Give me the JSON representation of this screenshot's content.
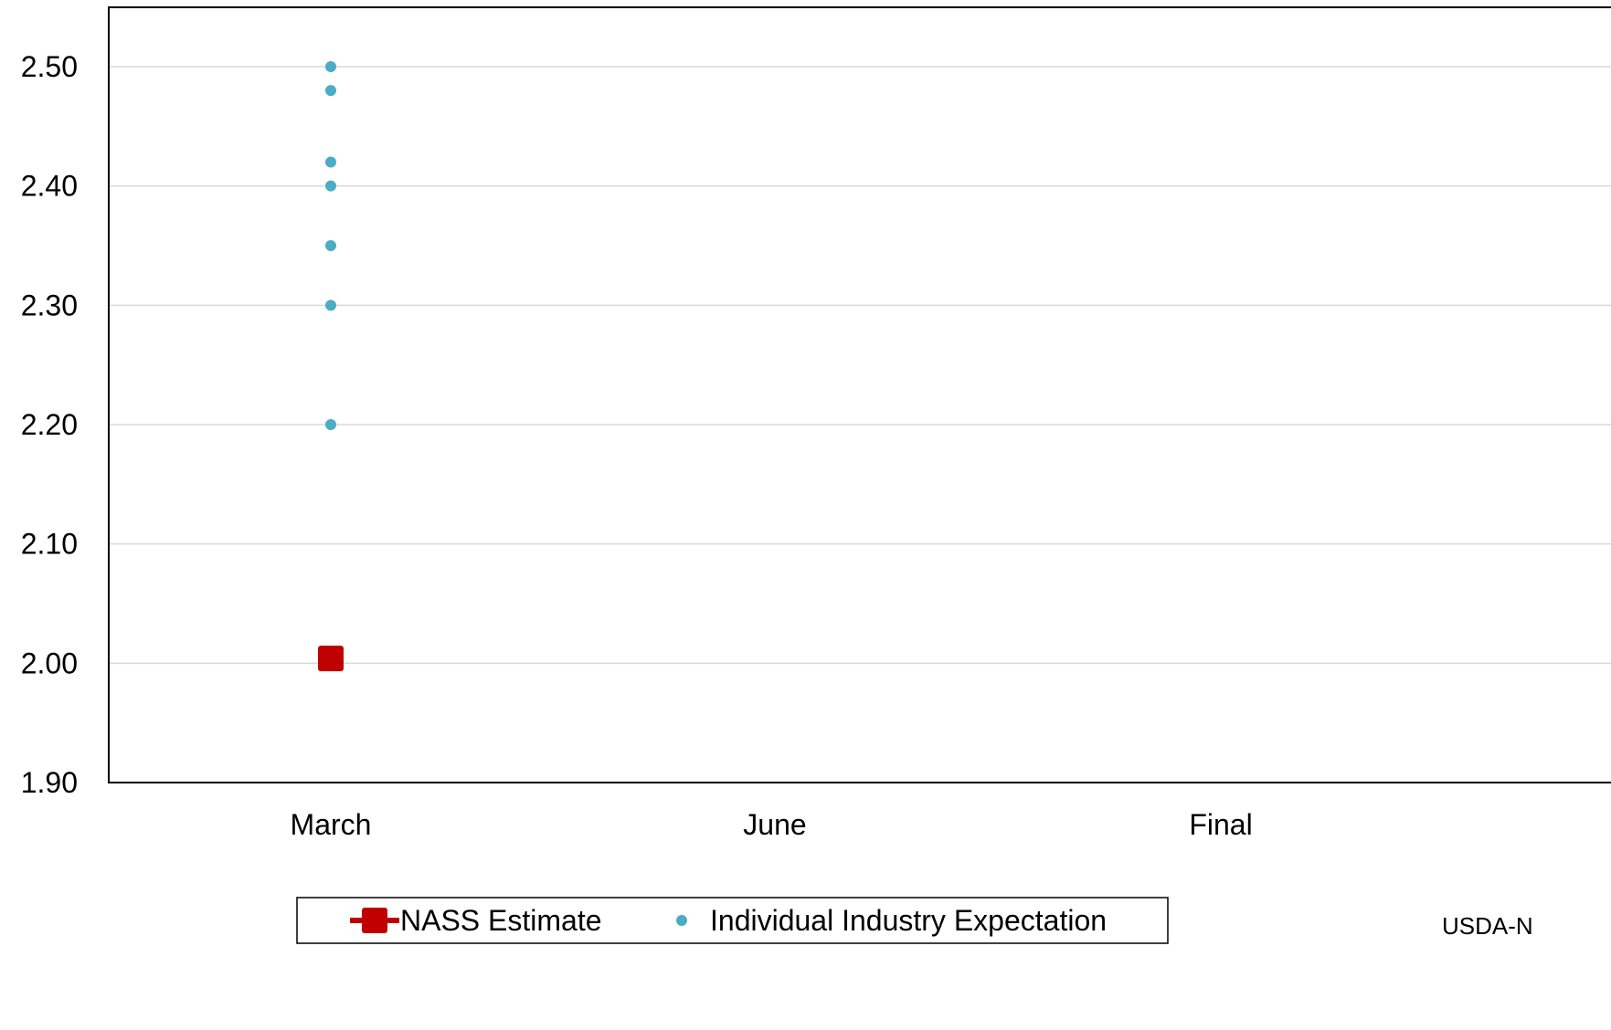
{
  "chart_data": {
    "type": "scatter",
    "categories": [
      "March",
      "June",
      "Final"
    ],
    "ylim": [
      1.9,
      2.55
    ],
    "yticks": [
      "1.90",
      "2.00",
      "2.10",
      "2.20",
      "2.30",
      "2.40",
      "2.50"
    ],
    "grid": true,
    "series": [
      {
        "name": "NASS Estimate",
        "marker": "square",
        "color": "#C00000",
        "points": [
          {
            "category": "March",
            "value": 2.004
          }
        ]
      },
      {
        "name": "Individual Industry Expectation",
        "marker": "circle",
        "color": "#4BACC6",
        "points": [
          {
            "category": "March",
            "value": 2.5
          },
          {
            "category": "March",
            "value": 2.48
          },
          {
            "category": "March",
            "value": 2.42
          },
          {
            "category": "March",
            "value": 2.4
          },
          {
            "category": "March",
            "value": 2.35
          },
          {
            "category": "March",
            "value": 2.3
          },
          {
            "category": "March",
            "value": 2.2
          }
        ]
      }
    ],
    "legend": {
      "position": "bottom",
      "items": [
        "NASS Estimate",
        "Individual Industry Expectation"
      ]
    },
    "source_note": "USDA-N"
  }
}
